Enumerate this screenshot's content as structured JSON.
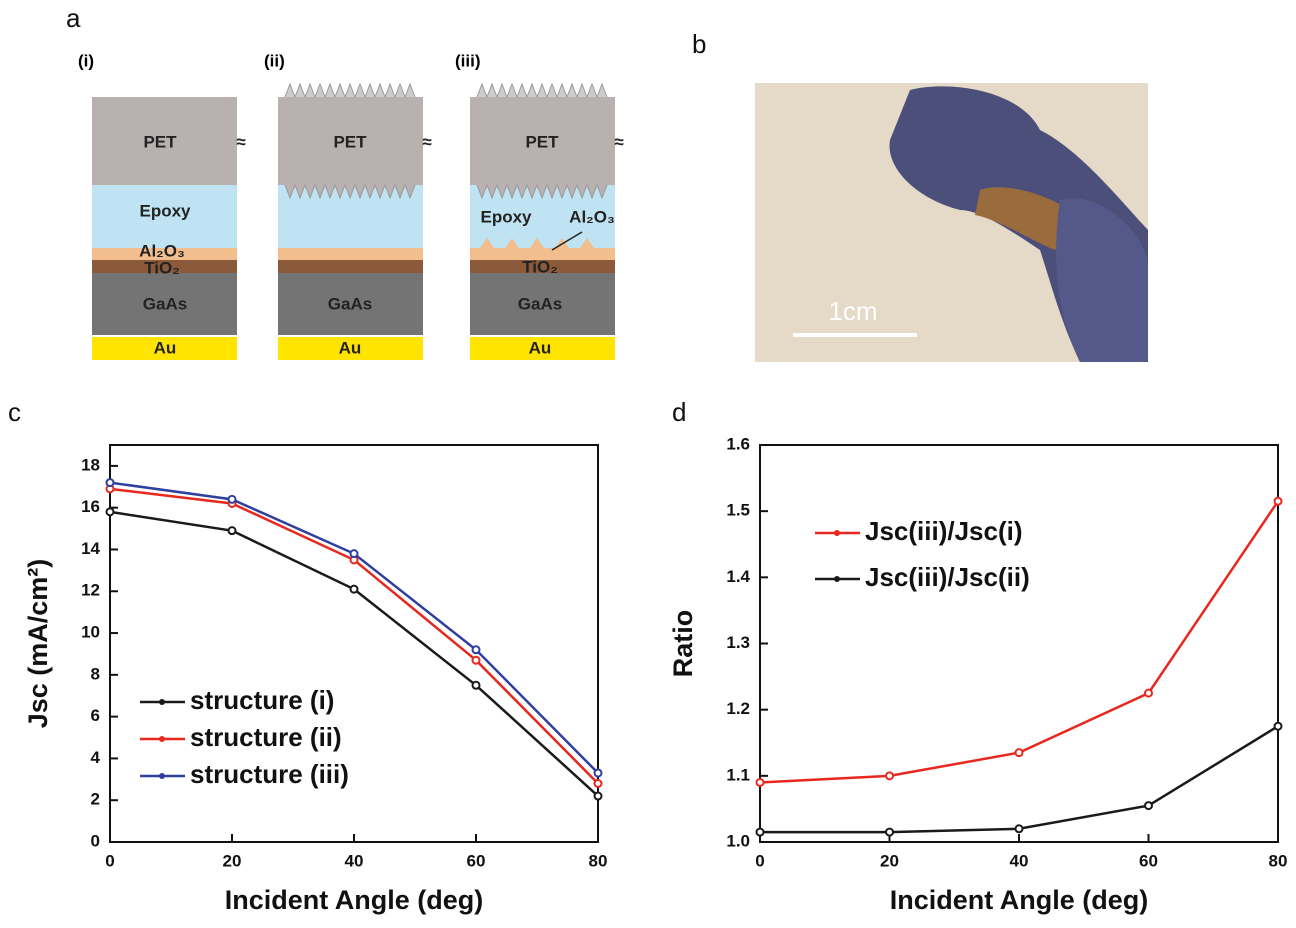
{
  "panel_labels": [
    "a",
    "b",
    "c",
    "d"
  ],
  "diagram": {
    "stacks": [
      {
        "label": "(i)",
        "pet": "PET",
        "epoxy": "Epoxy",
        "al2o3": "Al₂O₃",
        "tio2": "TiO₂",
        "gaas": "GaAs",
        "au": "Au",
        "break": "≈"
      },
      {
        "label": "(ii)",
        "pet": "PET",
        "gaas": "GaAs",
        "au": "Au",
        "break": "≈"
      },
      {
        "label": "(iii)",
        "pet": "PET",
        "epoxy": "Epoxy",
        "al2o3": "Al₂O₃",
        "tio2": "TiO₂",
        "gaas": "GaAs",
        "au": "Au",
        "break": "≈"
      }
    ]
  },
  "photo": {
    "scale_label": "1cm"
  },
  "chart_data": [
    {
      "type": "line",
      "xlabel": "Incident Angle (deg)",
      "ylabel": "Jsc (mA/cm²)",
      "x": [
        0,
        20,
        40,
        60,
        80
      ],
      "xlim": [
        0,
        80
      ],
      "xticks": [
        0,
        20,
        40,
        60,
        80
      ],
      "ylim": [
        0,
        19
      ],
      "yticks": [
        0,
        2,
        4,
        6,
        8,
        10,
        12,
        14,
        16,
        18
      ],
      "legend": "lower left",
      "series": [
        {
          "name": "structure (i)",
          "color": "#1a1a1a",
          "values": [
            15.8,
            14.9,
            12.1,
            7.5,
            2.2
          ]
        },
        {
          "name": "structure (ii)",
          "color": "#e8281e",
          "values": [
            16.9,
            16.2,
            13.5,
            8.7,
            2.8
          ]
        },
        {
          "name": "structure (iii)",
          "color": "#2e3f9e",
          "values": [
            17.2,
            16.4,
            13.8,
            9.2,
            3.3
          ]
        }
      ]
    },
    {
      "type": "line",
      "xlabel": "Incident Angle (deg)",
      "ylabel": "Ratio",
      "x": [
        0,
        20,
        40,
        60,
        80
      ],
      "xlim": [
        0,
        80
      ],
      "xticks": [
        0,
        20,
        40,
        60,
        80
      ],
      "ylim": [
        1.0,
        1.6
      ],
      "yticks": [
        {
          "value": 1.0,
          "label": "1.0"
        },
        1.1,
        1.2,
        1.3,
        1.4,
        1.5,
        1.6
      ],
      "legend": "upper left",
      "series": [
        {
          "name": "Jsc(iii)/Jsc(i)",
          "color": "#e8281e",
          "values": [
            1.09,
            1.1,
            1.135,
            1.225,
            1.515
          ]
        },
        {
          "name": "Jsc(iii)/Jsc(ii)",
          "color": "#1a1a1a",
          "values": [
            1.015,
            1.015,
            1.02,
            1.055,
            1.175
          ]
        }
      ]
    }
  ]
}
